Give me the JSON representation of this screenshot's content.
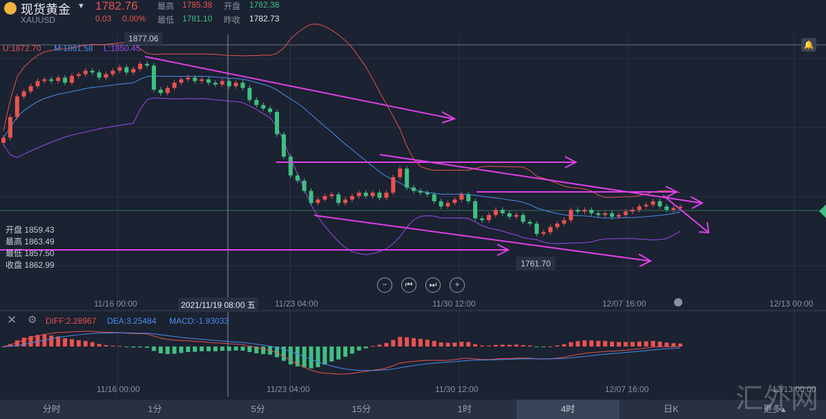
{
  "header": {
    "name": "现货黄金",
    "symbol": "XAUUSD",
    "price": "1782.76",
    "change": "0.03",
    "change_pct": "0.00%",
    "high_label": "最高",
    "high": "1785.38",
    "open_label": "开盘",
    "open": "1782.38",
    "low_label": "最低",
    "low": "1781.10",
    "prev_label": "昨收",
    "prev": "1782.73"
  },
  "boll": {
    "u": "U:1872.70",
    "m": "M:1861.58",
    "l": "L:1850.45"
  },
  "markers": {
    "max": "1877.06",
    "min": "1761.70",
    "crosshair_time": "2021/11/19 08:00 五"
  },
  "ohlc_box": {
    "open": "开盘 1859.43",
    "high": "最高 1863.49",
    "low": "最低 1857.50",
    "close": "收盘 1862.99"
  },
  "xaxis": [
    "11/16 00:00",
    "11/23 04:00",
    "11/30 12:00",
    "12/07 16:00",
    "12/13 00:00"
  ],
  "macd": {
    "diff": "DIFF:2.28967",
    "dea": "DEA:3.25484",
    "macd": "MACD:-1.93033"
  },
  "tabs": [
    {
      "label": "分时"
    },
    {
      "label": "1分"
    },
    {
      "label": "5分"
    },
    {
      "label": "15分"
    },
    {
      "label": "1时"
    },
    {
      "label": "4时",
      "selected": true
    },
    {
      "label": "日K"
    },
    {
      "label": "更多▴"
    }
  ],
  "watermark": "汇外网",
  "colors": {
    "up": "#e8534f",
    "down": "#3fbf82",
    "trendline": "#e040e8",
    "upper": "#e8534f",
    "mid": "#4a8ef0",
    "lower": "#9a4cf0"
  },
  "chart_data": {
    "type": "candlestick",
    "indicator": [
      "BOLL",
      "MACD"
    ],
    "ylim": [
      1761.7,
      1877.06
    ],
    "closes": [
      1823,
      1835,
      1847,
      1850,
      1853,
      1856,
      1857,
      1856,
      1858,
      1855,
      1859,
      1860,
      1862,
      1861,
      1858,
      1860,
      1862,
      1864,
      1861,
      1863,
      1866,
      1865,
      1851,
      1849,
      1852,
      1855,
      1857,
      1858,
      1856,
      1857,
      1855,
      1854,
      1856,
      1853,
      1855,
      1852,
      1845,
      1842,
      1840,
      1838,
      1825,
      1812,
      1801,
      1798,
      1792,
      1785,
      1787,
      1789,
      1790,
      1785,
      1787,
      1789,
      1791,
      1789,
      1791,
      1788,
      1791,
      1800,
      1805,
      1794,
      1792,
      1791,
      1790,
      1786,
      1783,
      1785,
      1787,
      1790,
      1786,
      1776,
      1775,
      1778,
      1781,
      1779,
      1777,
      1778,
      1774,
      1773,
      1767,
      1768,
      1771,
      1773,
      1775,
      1781,
      1780,
      1781,
      1779,
      1778,
      1779,
      1777,
      1778,
      1780,
      1781,
      1783,
      1784,
      1786,
      1783,
      1781,
      1782,
      1782.76
    ]
  }
}
